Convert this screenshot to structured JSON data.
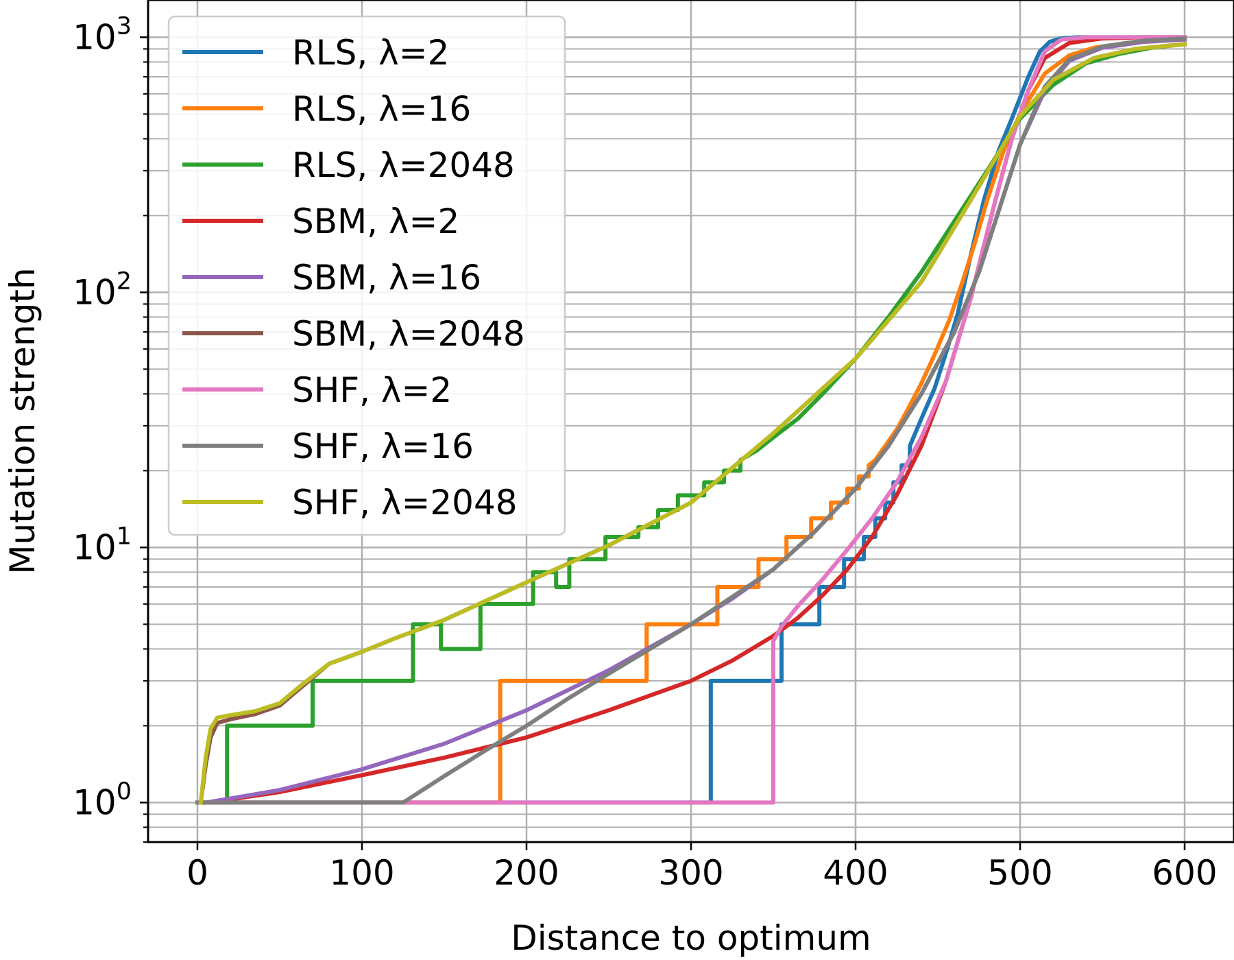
{
  "chart_data": {
    "type": "line",
    "title": "",
    "xlabel": "Distance to optimum",
    "ylabel": "Mutation strength",
    "xlim": [
      -30,
      630
    ],
    "ylim": [
      0.7,
      1400
    ],
    "yscale": "log",
    "grid": true,
    "legend_position": "top-left",
    "x_ticks": [
      {
        "value": 0,
        "label": "0"
      },
      {
        "value": 100,
        "label": "100"
      },
      {
        "value": 200,
        "label": "200"
      },
      {
        "value": 300,
        "label": "300"
      },
      {
        "value": 400,
        "label": "400"
      },
      {
        "value": 500,
        "label": "500"
      },
      {
        "value": 600,
        "label": "600"
      }
    ],
    "y_ticks": [
      {
        "value": 1,
        "base": "10",
        "exponent": "0"
      },
      {
        "value": 10,
        "base": "10",
        "exponent": "1"
      },
      {
        "value": 100,
        "base": "10",
        "exponent": "2"
      },
      {
        "value": 1000,
        "base": "10",
        "exponent": "3"
      }
    ],
    "series": [
      {
        "name": "RLS, λ=2",
        "color": "#1f77b4",
        "step": true,
        "x": [
          0,
          312,
          312,
          355,
          355,
          378,
          378,
          393,
          393,
          405,
          405,
          412,
          412,
          418,
          418,
          423,
          423,
          428,
          428,
          433,
          433,
          440,
          448,
          455,
          462,
          470,
          478,
          487,
          495,
          505,
          512,
          518,
          525,
          535,
          550,
          600
        ],
        "y": [
          1,
          1,
          3,
          3,
          5,
          5,
          7,
          7,
          9,
          9,
          11,
          11,
          13,
          13,
          15,
          15,
          18,
          18,
          21,
          21,
          25,
          32,
          42,
          58,
          82,
          140,
          230,
          360,
          480,
          700,
          880,
          960,
          990,
          1000,
          1000,
          1000
        ]
      },
      {
        "name": "RLS, λ=16",
        "color": "#ff7f0e",
        "step": true,
        "x": [
          0,
          184,
          184,
          273,
          273,
          316,
          316,
          341,
          341,
          358,
          358,
          373,
          373,
          385,
          385,
          395,
          395,
          402,
          402,
          408,
          408,
          412,
          418,
          425,
          432,
          440,
          448,
          457,
          465,
          473,
          480,
          490,
          500,
          515,
          530,
          545,
          565,
          600
        ],
        "y": [
          1,
          1,
          3,
          3,
          5,
          5,
          7,
          7,
          9,
          9,
          11,
          11,
          13,
          13,
          15,
          15,
          17,
          17,
          19,
          19,
          21,
          22,
          25,
          29,
          35,
          44,
          57,
          78,
          110,
          160,
          230,
          360,
          500,
          720,
          850,
          910,
          950,
          980
        ]
      },
      {
        "name": "RLS, λ=2048",
        "color": "#2ca02c",
        "step": true,
        "x": [
          2,
          5,
          8,
          12,
          18,
          18,
          70,
          70,
          131,
          131,
          148,
          148,
          172,
          172,
          204,
          204,
          218,
          218,
          226,
          226,
          248,
          248,
          268,
          268,
          280,
          280,
          292,
          292,
          308,
          308,
          320,
          320,
          330,
          330,
          340,
          350,
          365,
          380,
          400,
          420,
          440,
          460,
          480,
          500,
          520,
          540,
          560,
          580,
          600
        ],
        "y": [
          1,
          1,
          1,
          1,
          1,
          2,
          2,
          3,
          3,
          5,
          5,
          4,
          4,
          6,
          6,
          8,
          8,
          7,
          7,
          9,
          9,
          11,
          11,
          12,
          12,
          14,
          14,
          16,
          16,
          18,
          18,
          20,
          20,
          22,
          24,
          27,
          32,
          40,
          55,
          80,
          120,
          190,
          300,
          480,
          650,
          790,
          860,
          910,
          940
        ]
      },
      {
        "name": "SBM, λ=2",
        "color": "#d62728",
        "x": [
          5,
          25,
          50,
          100,
          150,
          200,
          250,
          300,
          325,
          350,
          365,
          380,
          395,
          410,
          425,
          440,
          455,
          470,
          485,
          495,
          505,
          515,
          530,
          550,
          575,
          600
        ],
        "y": [
          1,
          1.04,
          1.1,
          1.28,
          1.5,
          1.8,
          2.3,
          3.0,
          3.6,
          4.5,
          5.3,
          6.5,
          8.2,
          11,
          16,
          25,
          45,
          95,
          230,
          400,
          620,
          830,
          950,
          990,
          1000,
          1000
        ]
      },
      {
        "name": "SBM, λ=16",
        "color": "#9467bd",
        "x": [
          5,
          25,
          50,
          100,
          150,
          200,
          250,
          300,
          325,
          350,
          375,
          400,
          420,
          440,
          460,
          475,
          490,
          500,
          515,
          530,
          550,
          575,
          600
        ],
        "y": [
          1,
          1.05,
          1.12,
          1.35,
          1.7,
          2.3,
          3.3,
          5.0,
          6.3,
          8.2,
          11.5,
          17,
          25,
          40,
          70,
          120,
          240,
          380,
          620,
          810,
          910,
          960,
          980
        ]
      },
      {
        "name": "SBM, λ=2048",
        "color": "#8c564b",
        "x": [
          2,
          5,
          8,
          12,
          20,
          35,
          50,
          65,
          80,
          100,
          120,
          150,
          200,
          250,
          300,
          350,
          400,
          440,
          470,
          490,
          500,
          520,
          545,
          570,
          600
        ],
        "y": [
          1,
          1.4,
          1.8,
          2.05,
          2.12,
          2.22,
          2.4,
          2.9,
          3.5,
          3.9,
          4.4,
          5.2,
          7.3,
          10.2,
          15,
          28,
          55,
          110,
          230,
          380,
          490,
          680,
          830,
          900,
          940
        ]
      },
      {
        "name": "SHF, λ=2",
        "color": "#e377c2",
        "x": [
          0,
          350,
          350,
          355,
          365,
          380,
          395,
          410,
          425,
          440,
          455,
          470,
          485,
          495,
          505,
          515,
          525,
          540,
          560,
          600
        ],
        "y": [
          1,
          1,
          4.3,
          4.9,
          5.9,
          7.5,
          9.8,
          13,
          18,
          27,
          45,
          95,
          230,
          400,
          620,
          880,
          980,
          1000,
          1000,
          1000
        ]
      },
      {
        "name": "SHF, λ=16",
        "color": "#7f7f7f",
        "x": [
          0,
          125,
          150,
          175,
          200,
          225,
          250,
          275,
          300,
          325,
          350,
          375,
          400,
          420,
          440,
          460,
          475,
          490,
          500,
          515,
          530,
          550,
          575,
          600
        ],
        "y": [
          1,
          1,
          1.27,
          1.6,
          2.0,
          2.55,
          3.2,
          4.0,
          5.0,
          6.4,
          8.2,
          11.5,
          17,
          25,
          40,
          70,
          120,
          240,
          380,
          640,
          820,
          920,
          970,
          990
        ]
      },
      {
        "name": "SHF, λ=2048",
        "color": "#bcbd22",
        "x": [
          2,
          5,
          8,
          12,
          20,
          35,
          50,
          65,
          80,
          100,
          120,
          150,
          200,
          250,
          300,
          350,
          400,
          440,
          470,
          490,
          500,
          520,
          545,
          570,
          600
        ],
        "y": [
          1,
          1.5,
          1.95,
          2.15,
          2.2,
          2.28,
          2.45,
          2.95,
          3.5,
          3.9,
          4.4,
          5.2,
          7.3,
          10.2,
          15,
          28,
          55,
          110,
          230,
          380,
          490,
          680,
          830,
          900,
          940
        ]
      }
    ]
  }
}
